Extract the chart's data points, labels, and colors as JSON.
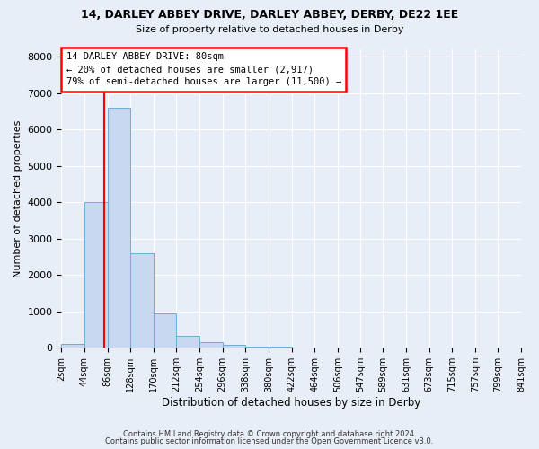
{
  "title1": "14, DARLEY ABBEY DRIVE, DARLEY ABBEY, DERBY, DE22 1EE",
  "title2": "Size of property relative to detached houses in Derby",
  "xlabel": "Distribution of detached houses by size in Derby",
  "ylabel": "Number of detached properties",
  "bin_edges": [
    2,
    44,
    86,
    128,
    170,
    212,
    254,
    296,
    338,
    380,
    422,
    464,
    506,
    547,
    589,
    631,
    673,
    715,
    757,
    799,
    841
  ],
  "bin_heights": [
    100,
    4000,
    6600,
    2600,
    950,
    320,
    150,
    80,
    40,
    20,
    15,
    10,
    8,
    5,
    4,
    3,
    3,
    2,
    1,
    1
  ],
  "bar_color": "#c8d8f0",
  "bar_edgecolor": "#6baed6",
  "property_size": 80,
  "annotation_line1": "14 DARLEY ABBEY DRIVE: 80sqm",
  "annotation_line2": "← 20% of detached houses are smaller (2,917)",
  "annotation_line3": "79% of semi-detached houses are larger (11,500) →",
  "vline_color": "red",
  "annotation_box_edgecolor": "red",
  "annotation_box_facecolor": "white",
  "ylim": [
    0,
    8200
  ],
  "yticks": [
    0,
    1000,
    2000,
    3000,
    4000,
    5000,
    6000,
    7000,
    8000
  ],
  "footer1": "Contains HM Land Registry data © Crown copyright and database right 2024.",
  "footer2": "Contains public sector information licensed under the Open Government Licence v3.0.",
  "bg_color": "#e8eef8",
  "plot_bg_color": "#e8eef8",
  "grid_color": "#ffffff",
  "title1_fontsize": 9,
  "title2_fontsize": 8,
  "ylabel_fontsize": 8,
  "xlabel_fontsize": 8.5,
  "ytick_fontsize": 8,
  "xtick_fontsize": 7,
  "footer_fontsize": 6
}
